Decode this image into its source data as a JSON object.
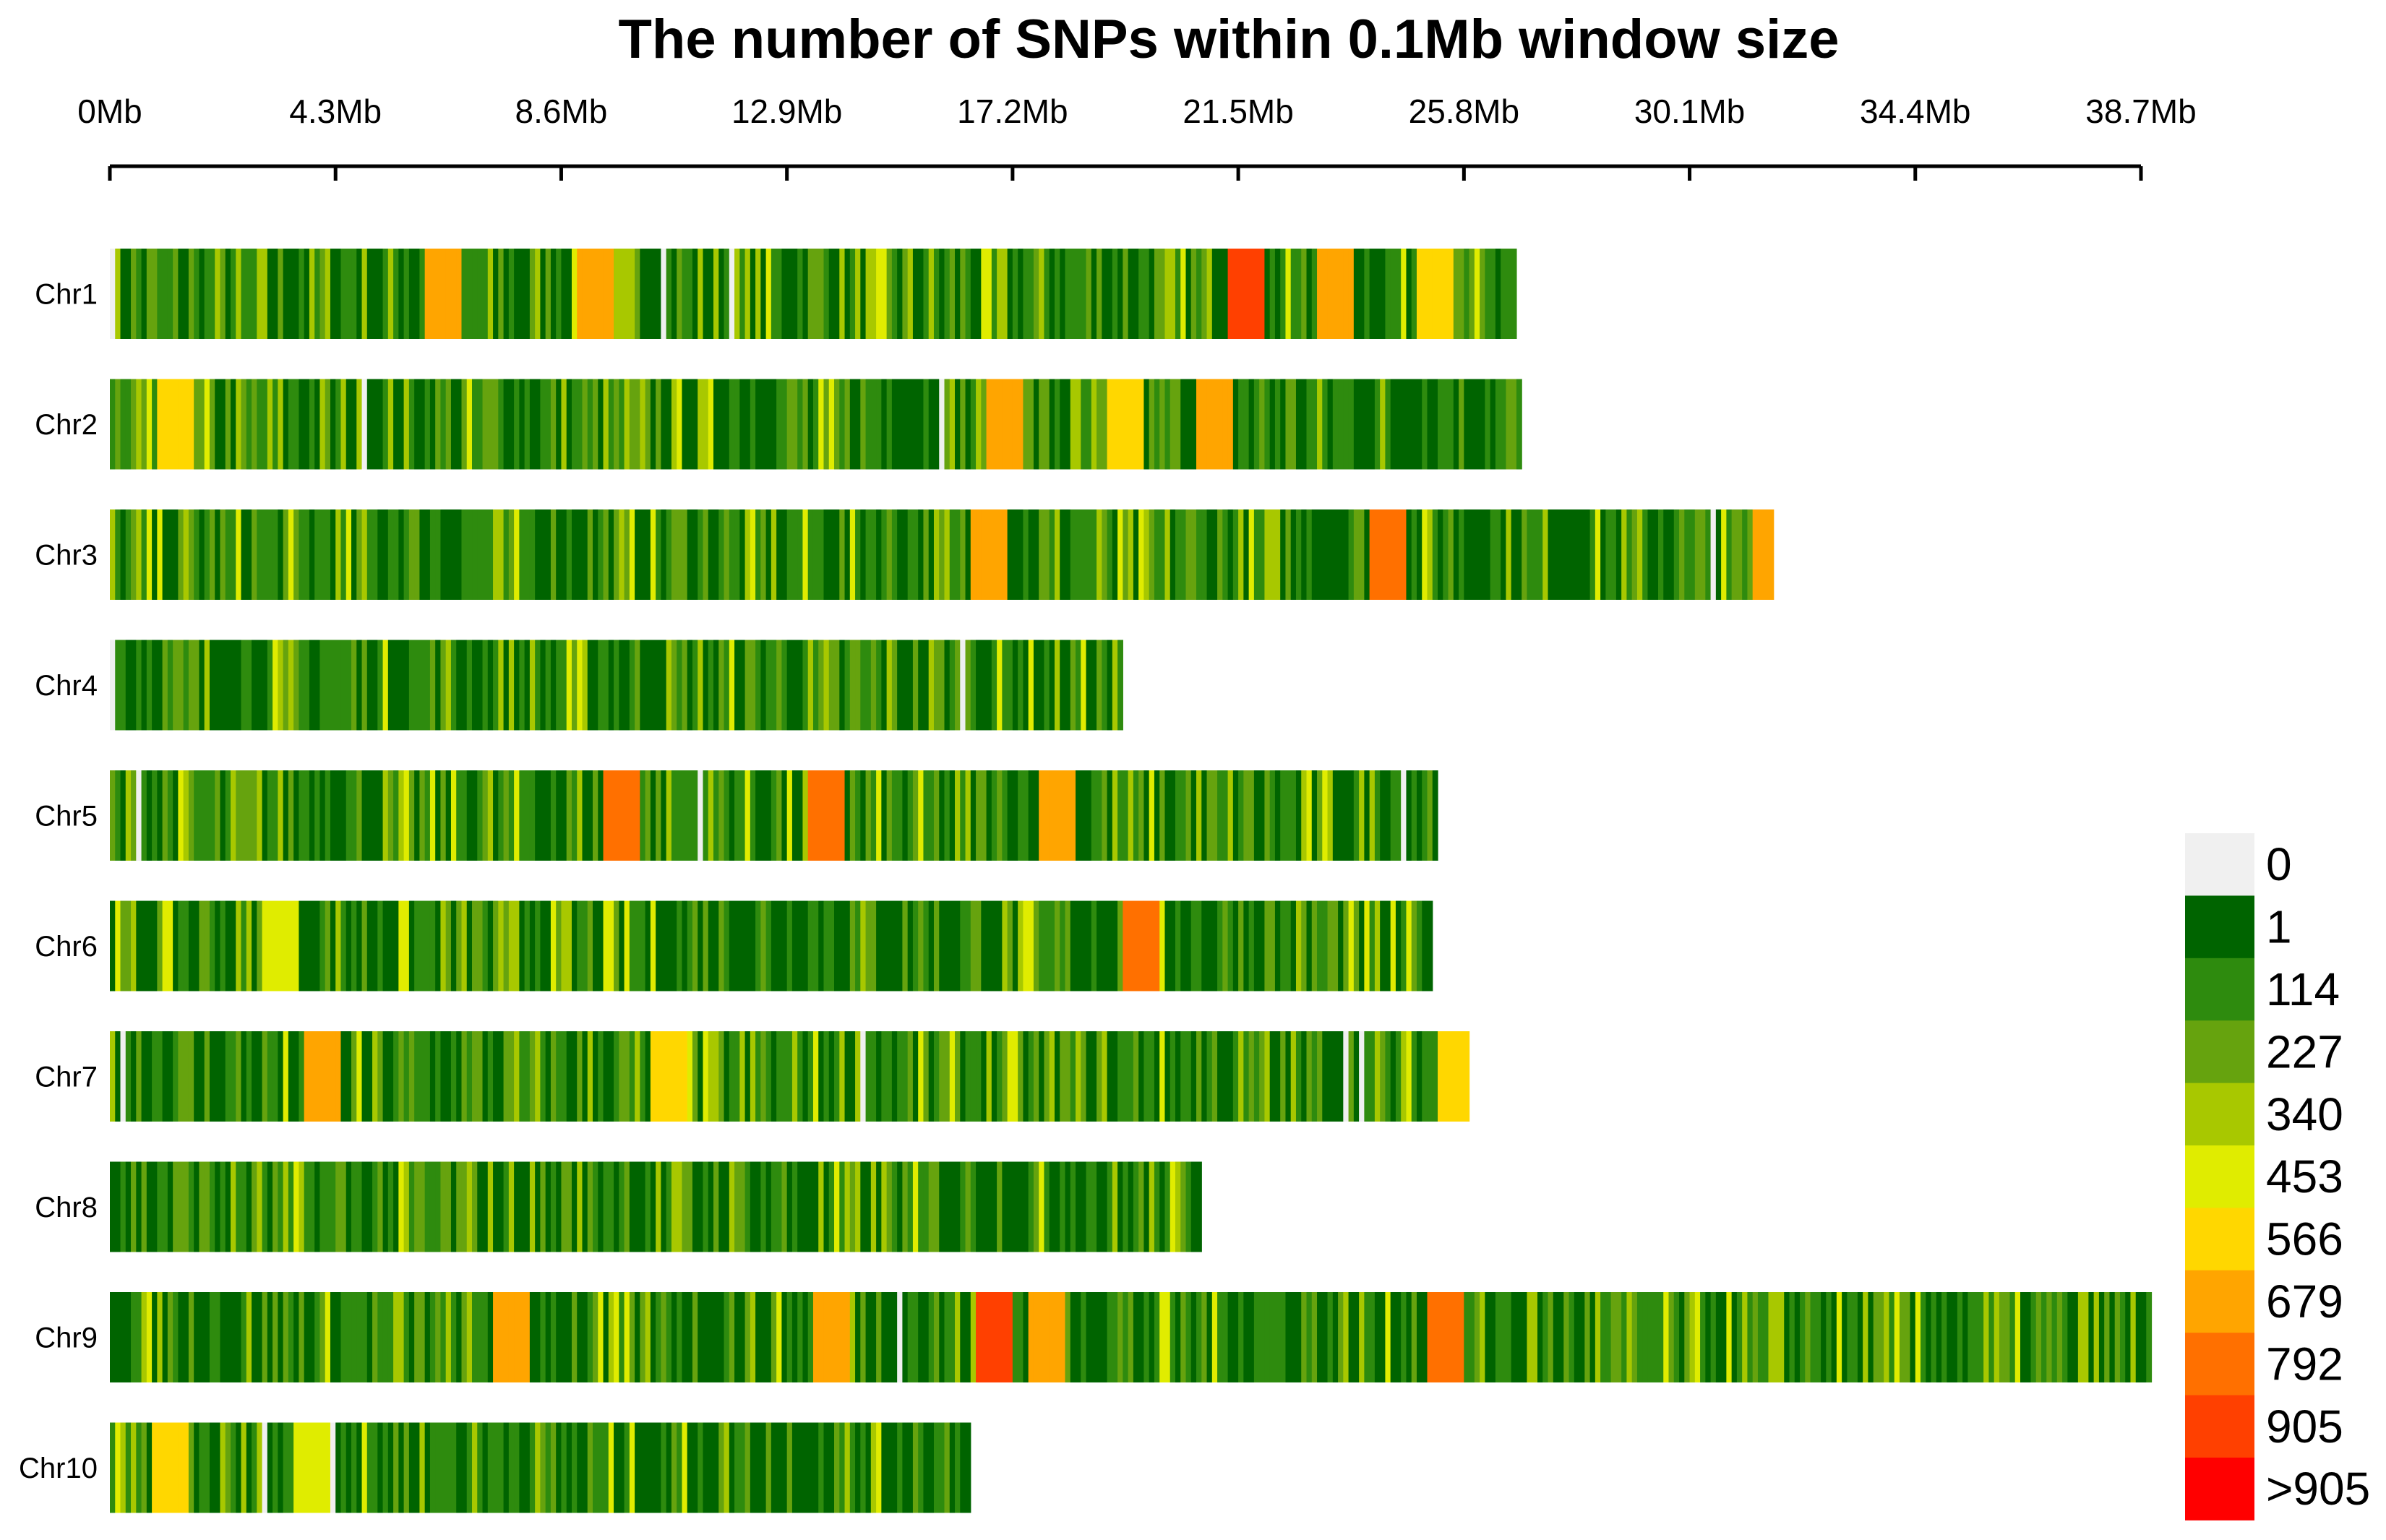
{
  "chart_data": {
    "type": "heatmap",
    "title": "The number of SNPs within 0.1Mb window size",
    "window_size_mb": 0.1,
    "x_axis": {
      "range": [
        0,
        38.7
      ],
      "ticks": [
        0,
        4.3,
        8.6,
        12.9,
        17.2,
        21.5,
        25.8,
        30.1,
        34.4,
        38.7
      ],
      "tick_labels": [
        "0Mb",
        "4.3Mb",
        "8.6Mb",
        "12.9Mb",
        "17.2Mb",
        "21.5Mb",
        "25.8Mb",
        "30.1Mb",
        "34.4Mb",
        "38.7Mb"
      ]
    },
    "chromosomes": [
      {
        "name": "Chr1",
        "length_mb": 26.8,
        "hotspots_mb": [
          [
            6.3,
            3
          ],
          [
            9.2,
            3
          ],
          [
            21.6,
            5
          ],
          [
            23.3,
            3
          ],
          [
            25.2,
            2
          ]
        ]
      },
      {
        "name": "Chr2",
        "length_mb": 26.9,
        "hotspots_mb": [
          [
            1.2,
            2
          ],
          [
            17.0,
            3
          ],
          [
            19.3,
            2
          ],
          [
            21.0,
            3
          ]
        ]
      },
      {
        "name": "Chr3",
        "length_mb": 31.7,
        "hotspots_mb": [
          [
            16.7,
            3
          ],
          [
            24.3,
            4
          ],
          [
            31.6,
            3
          ]
        ]
      },
      {
        "name": "Chr4",
        "length_mb": 19.3,
        "hotspots_mb": []
      },
      {
        "name": "Chr5",
        "length_mb": 25.3,
        "hotspots_mb": [
          [
            9.7,
            4
          ],
          [
            13.6,
            4
          ],
          [
            18.0,
            3
          ]
        ]
      },
      {
        "name": "Chr6",
        "length_mb": 25.2,
        "hotspots_mb": [
          [
            19.6,
            4
          ],
          [
            3.2,
            1
          ]
        ]
      },
      {
        "name": "Chr7",
        "length_mb": 25.9,
        "hotspots_mb": [
          [
            4.0,
            3
          ],
          [
            10.6,
            2
          ],
          [
            25.6,
            2
          ]
        ]
      },
      {
        "name": "Chr8",
        "length_mb": 20.8,
        "hotspots_mb": []
      },
      {
        "name": "Chr9",
        "length_mb": 38.9,
        "hotspots_mb": [
          [
            7.6,
            3
          ],
          [
            13.7,
            3
          ],
          [
            16.8,
            5
          ],
          [
            17.8,
            3
          ],
          [
            25.4,
            4
          ]
        ]
      },
      {
        "name": "Chr10",
        "length_mb": 16.4,
        "hotspots_mb": [
          [
            1.1,
            2
          ],
          [
            3.8,
            1
          ]
        ]
      }
    ],
    "legend": {
      "labels": [
        "0",
        "1",
        "114",
        "227",
        "340",
        "453",
        "566",
        "679",
        "792",
        "905",
        ">905"
      ],
      "colors": [
        "#f0f0f0",
        "#006400",
        "#2e8b0e",
        "#66a30e",
        "#a8c800",
        "#e0ec00",
        "#ffd700",
        "#ffa500",
        "#ff7000",
        "#ff4000",
        "#ff0000"
      ]
    }
  }
}
